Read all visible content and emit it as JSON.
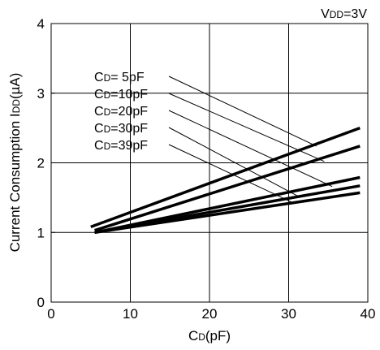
{
  "chart_data": {
    "type": "line",
    "annotation": {
      "main": "V",
      "sub": "DD",
      "rest": "=3V"
    },
    "xlabel": {
      "main": "C",
      "sub": "D",
      "rest": "(pF)"
    },
    "ylabel": {
      "main": "Current Consumption I",
      "sub": "DD",
      "rest": "(µA)"
    },
    "xlim": [
      0,
      40
    ],
    "ylim": [
      0,
      4
    ],
    "xticks": [
      "0",
      "10",
      "20",
      "30",
      "40"
    ],
    "yticks": [
      "0",
      "1",
      "2",
      "3",
      "4"
    ],
    "grid": true,
    "series": [
      {
        "name": "CD= 5pF",
        "label": {
          "main": "C",
          "sub": "D",
          "rest": "= 5pF"
        },
        "x": [
          5,
          39
        ],
        "y": [
          1.08,
          2.5
        ]
      },
      {
        "name": "CD=10pF",
        "label": {
          "main": "C",
          "sub": "D",
          "rest": "=10pF"
        },
        "x": [
          5.5,
          39
        ],
        "y": [
          1.03,
          2.24
        ]
      },
      {
        "name": "CD=20pF",
        "label": {
          "main": "C",
          "sub": "D",
          "rest": "=20pF"
        },
        "x": [
          5.5,
          39
        ],
        "y": [
          1.0,
          1.79
        ]
      },
      {
        "name": "CD=30pF",
        "label": {
          "main": "C",
          "sub": "D",
          "rest": "=30pF"
        },
        "x": [
          5.5,
          39
        ],
        "y": [
          1.0,
          1.67
        ]
      },
      {
        "name": "CD=39pF",
        "label": {
          "main": "C",
          "sub": "D",
          "rest": "=39pF"
        },
        "x": [
          5.5,
          39
        ],
        "y": [
          1.0,
          1.57
        ]
      }
    ],
    "leaders": [
      {
        "target": [
          33.5,
          2.24
        ]
      },
      {
        "target": [
          34.5,
          2.02
        ]
      },
      {
        "target": [
          35.5,
          1.66
        ]
      },
      {
        "target": [
          31.2,
          1.52
        ]
      },
      {
        "target": [
          30.3,
          1.44
        ]
      }
    ]
  }
}
